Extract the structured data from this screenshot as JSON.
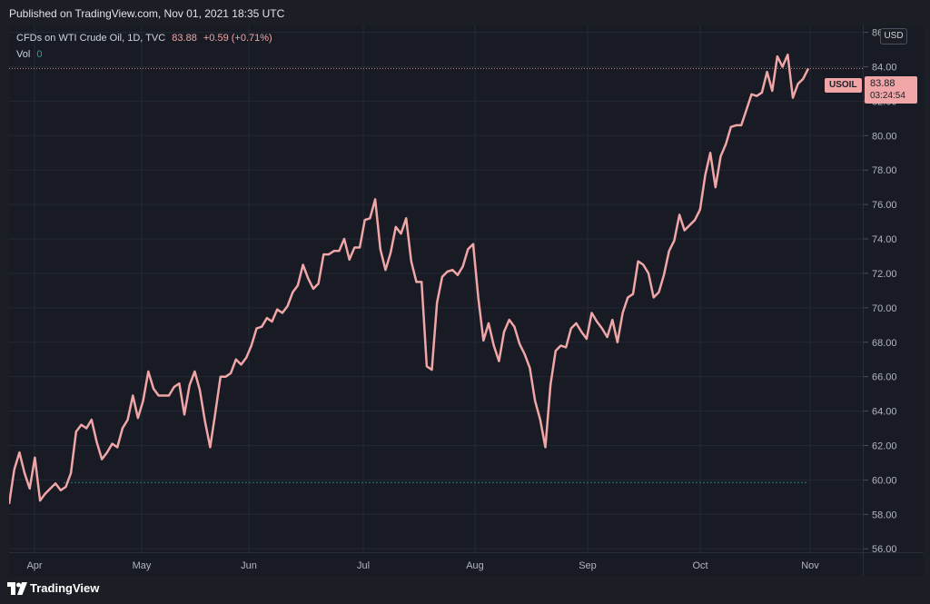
{
  "header": {
    "published": "Published on TradingView.com, Nov 01, 2021 18:35 UTC"
  },
  "legend": {
    "title": "CFDs on WTI Crude Oil, 1D, TVC",
    "price": "83.88",
    "change": "+0.59 (+0.71%)",
    "vol_label": "Vol",
    "vol_value": "0"
  },
  "price_scale": {
    "currency": "USD",
    "symbol": "USOIL",
    "last_price": "83.88",
    "countdown": "03:24:54"
  },
  "footer": {
    "brand": "TradingView"
  },
  "colors": {
    "line": "#f0a6a6",
    "background": "#181b24",
    "grid": "#242833",
    "volume_baseline": "#26a69a"
  },
  "chart_data": {
    "type": "line",
    "title": "CFDs on WTI Crude Oil, 1D, TVC",
    "xlabel": "",
    "ylabel": "USD",
    "x_ticks": [
      "Apr",
      "May",
      "Jun",
      "Jul",
      "Aug",
      "Sep",
      "Oct",
      "Nov"
    ],
    "y_ticks": [
      "56.00",
      "58.00",
      "60.00",
      "62.00",
      "64.00",
      "66.00",
      "68.00",
      "70.00",
      "72.00",
      "74.00",
      "76.00",
      "78.00",
      "80.00",
      "82.00",
      "84.00",
      "86.00"
    ],
    "ylim": [
      55.8,
      86.4
    ],
    "grid": true,
    "series": [
      {
        "values": [
          58.6,
          60.6,
          61.6,
          60.4,
          59.5,
          61.3,
          58.8,
          59.2,
          59.5,
          59.8,
          59.4,
          59.6,
          60.4,
          62.8,
          63.2,
          63.0,
          63.5,
          62.2,
          61.2,
          61.6,
          62.1,
          61.9,
          63.0,
          63.5,
          64.9,
          63.6,
          64.6,
          66.3,
          65.3,
          64.9,
          64.9,
          64.9,
          65.4,
          65.6,
          63.8,
          65.5,
          66.3,
          65.2,
          63.4,
          61.9,
          63.9,
          66.0,
          66.0,
          66.2,
          67.0,
          66.7,
          67.1,
          67.8,
          68.8,
          68.9,
          69.4,
          69.2,
          69.9,
          69.7,
          70.1,
          70.9,
          71.3,
          72.5,
          71.7,
          71.1,
          71.4,
          73.1,
          73.1,
          73.3,
          73.3,
          74.0,
          72.8,
          73.5,
          73.5,
          75.1,
          75.2,
          76.3,
          73.4,
          72.2,
          73.2,
          74.7,
          74.3,
          75.2,
          72.7,
          71.5,
          71.5,
          66.6,
          66.4,
          70.3,
          71.8,
          72.1,
          72.2,
          71.9,
          72.4,
          73.4,
          73.7,
          70.6,
          68.1,
          69.1,
          67.8,
          66.9,
          68.6,
          69.3,
          68.9,
          67.9,
          67.3,
          66.5,
          64.6,
          63.5,
          61.9,
          65.5,
          67.5,
          67.8,
          67.7,
          68.8,
          69.1,
          68.6,
          68.2,
          69.7,
          69.2,
          68.8,
          68.3,
          69.3,
          68.0,
          69.7,
          70.6,
          70.8,
          72.7,
          72.5,
          72.0,
          70.6,
          70.9,
          71.9,
          73.3,
          73.9,
          75.4,
          74.5,
          74.8,
          75.1,
          75.7,
          77.7,
          79.0,
          77.0,
          78.8,
          79.5,
          80.5,
          80.6,
          80.6,
          81.5,
          82.4,
          82.3,
          82.5,
          83.7,
          82.6,
          84.6,
          84.0,
          84.7,
          82.2,
          83.0,
          83.3,
          83.9
        ]
      }
    ],
    "volume": [
      0
    ]
  }
}
